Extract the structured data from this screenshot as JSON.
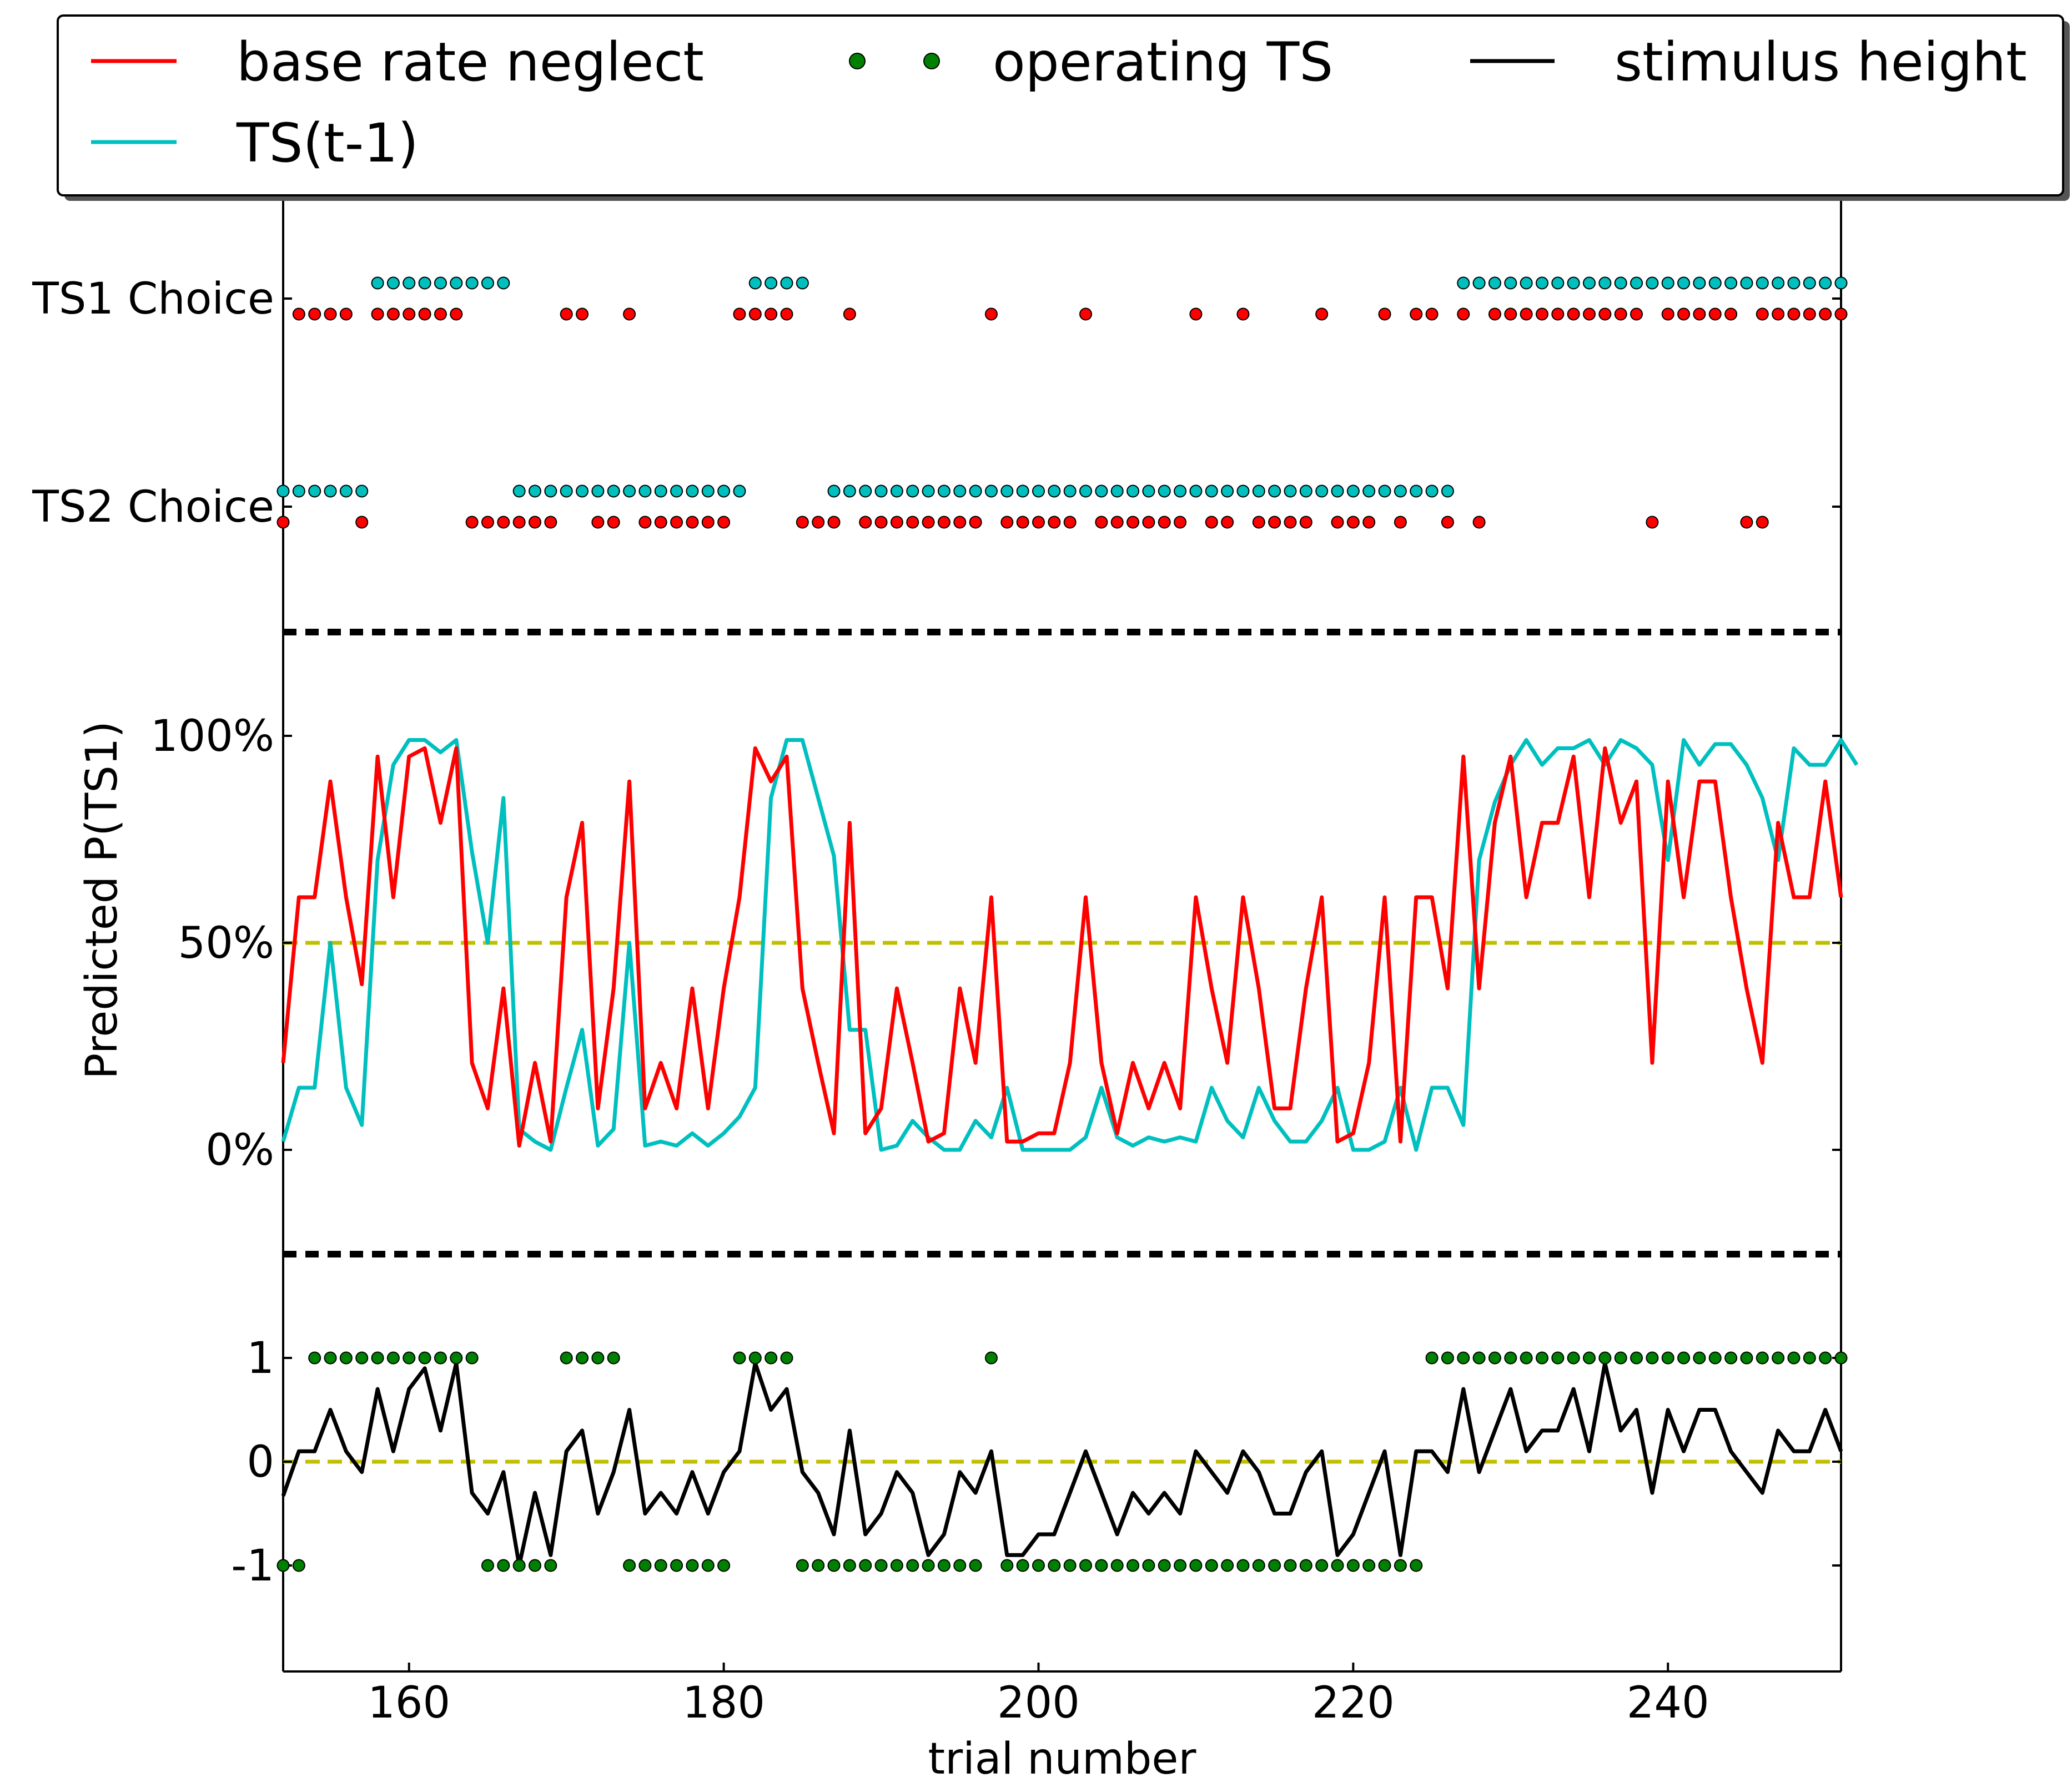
{
  "chart_data": {
    "type": "line",
    "xlabel": "trial number",
    "ylabel": "Predicted P(TS1)",
    "xlim": [
      152,
      251
    ],
    "x_ticks": [
      160,
      180,
      200,
      220,
      240
    ],
    "choice_panel": {
      "tick_labels": [
        "TS1 Choice",
        "TS2 Choice"
      ]
    },
    "prediction_panel": {
      "ylim": [
        0,
        1
      ],
      "ticks": [
        0,
        0.5,
        1
      ],
      "tick_labels": [
        "0%",
        "50%",
        "100%"
      ],
      "reference_line": 0.5
    },
    "stimulus_panel": {
      "ticks": [
        1,
        0,
        -1
      ],
      "tick_labels": [
        "1",
        "0",
        "-1"
      ],
      "reference_line": 0
    },
    "legend": {
      "placement": "top",
      "entries": [
        {
          "label": "base rate neglect",
          "color": "#ff0000",
          "marker": "line"
        },
        {
          "label": "operating TS",
          "color": "#008000",
          "marker": "dot"
        },
        {
          "label": "stimulus height",
          "color": "#000000",
          "marker": "line"
        },
        {
          "label": "TS(t-1)",
          "color": "#00bfbf",
          "marker": "line"
        }
      ]
    },
    "colors": {
      "base_rate_neglect": "#ff0000",
      "ts_prev": "#00bfbf",
      "operating_ts": "#008000",
      "stimulus_height": "#000000",
      "reference": "#bfbf00"
    },
    "x_start": 152,
    "series": [
      {
        "name": "base rate neglect",
        "values": [
          0.21,
          0.61,
          0.61,
          0.89,
          0.61,
          0.4,
          0.95,
          0.61,
          0.95,
          0.97,
          0.79,
          0.97,
          0.21,
          0.1,
          0.39,
          0.01,
          0.21,
          0.02,
          0.61,
          0.79,
          0.1,
          0.39,
          0.89,
          0.1,
          0.21,
          0.1,
          0.39,
          0.1,
          0.39,
          0.61,
          0.97,
          0.89,
          0.95,
          0.39,
          0.21,
          0.04,
          0.79,
          0.04,
          0.1,
          0.39,
          0.21,
          0.02,
          0.04,
          0.39,
          0.21,
          0.61,
          0.02,
          0.02,
          0.04,
          0.04,
          0.21,
          0.61,
          0.21,
          0.04,
          0.21,
          0.1,
          0.21,
          0.1,
          0.61,
          0.39,
          0.21,
          0.61,
          0.39,
          0.1,
          0.1,
          0.39,
          0.61,
          0.02,
          0.04,
          0.21,
          0.61,
          0.02,
          0.61,
          0.61,
          0.39,
          0.95,
          0.39,
          0.79,
          0.95,
          0.61,
          0.79,
          0.79,
          0.95,
          0.61,
          0.97,
          0.79,
          0.89,
          0.21,
          0.89,
          0.61,
          0.89,
          0.89,
          0.61,
          0.39,
          0.21,
          0.79,
          0.61,
          0.61,
          0.89,
          0.61
        ]
      },
      {
        "name": "TS(t-1)",
        "values": [
          0.02,
          0.15,
          0.15,
          0.5,
          0.15,
          0.06,
          0.7,
          0.93,
          0.99,
          0.99,
          0.96,
          0.99,
          0.72,
          0.5,
          0.85,
          0.05,
          0.02,
          0.0,
          0.15,
          0.29,
          0.01,
          0.05,
          0.5,
          0.01,
          0.02,
          0.01,
          0.04,
          0.01,
          0.04,
          0.08,
          0.15,
          0.85,
          0.99,
          0.99,
          0.85,
          0.71,
          0.29,
          0.29,
          0.0,
          0.01,
          0.07,
          0.03,
          0.0,
          0.0,
          0.07,
          0.03,
          0.15,
          0.0,
          0.0,
          0.0,
          0.0,
          0.03,
          0.15,
          0.03,
          0.01,
          0.03,
          0.02,
          0.03,
          0.02,
          0.15,
          0.07,
          0.03,
          0.15,
          0.07,
          0.02,
          0.02,
          0.07,
          0.15,
          0.0,
          0.0,
          0.02,
          0.15,
          0.0,
          0.15,
          0.15,
          0.06,
          0.7,
          0.84,
          0.93,
          0.99,
          0.93,
          0.97,
          0.97,
          0.99,
          0.93,
          0.99,
          0.97,
          0.93,
          0.7,
          0.99,
          0.93,
          0.98,
          0.98,
          0.93,
          0.85,
          0.7,
          0.97,
          0.93,
          0.93,
          0.99,
          0.93
        ]
      },
      {
        "name": "stimulus height",
        "values": [
          -0.33,
          0.1,
          0.1,
          0.5,
          0.1,
          -0.1,
          0.7,
          0.1,
          0.7,
          0.9,
          0.3,
          0.95,
          -0.3,
          -0.5,
          -0.1,
          -1.0,
          -0.3,
          -0.9,
          0.1,
          0.3,
          -0.5,
          -0.1,
          0.5,
          -0.5,
          -0.3,
          -0.5,
          -0.1,
          -0.5,
          -0.1,
          0.1,
          0.95,
          0.5,
          0.7,
          -0.1,
          -0.3,
          -0.7,
          0.3,
          -0.7,
          -0.5,
          -0.1,
          -0.3,
          -0.9,
          -0.7,
          -0.1,
          -0.3,
          0.1,
          -0.9,
          -0.9,
          -0.7,
          -0.7,
          -0.3,
          0.1,
          -0.3,
          -0.7,
          -0.3,
          -0.5,
          -0.3,
          -0.5,
          0.1,
          -0.1,
          -0.3,
          0.1,
          -0.1,
          -0.5,
          -0.5,
          -0.1,
          0.1,
          -0.9,
          -0.7,
          -0.3,
          0.1,
          -0.9,
          0.1,
          0.1,
          -0.1,
          0.7,
          -0.1,
          0.3,
          0.7,
          0.1,
          0.3,
          0.3,
          0.7,
          0.1,
          0.95,
          0.3,
          0.5,
          -0.3,
          0.5,
          0.1,
          0.5,
          0.5,
          0.1,
          -0.1,
          -0.3,
          0.3,
          0.1,
          0.1,
          0.5,
          0.1
        ]
      }
    ],
    "scatter_series": [
      {
        "name": "TS(t-1) choice",
        "color": "#00bfbf",
        "ts1_trials": [
          158,
          159,
          160,
          161,
          162,
          163,
          164,
          165,
          166,
          182,
          183,
          184,
          185,
          227,
          228,
          229,
          230,
          231,
          232,
          233,
          234,
          235,
          236,
          237,
          238,
          239,
          240,
          241,
          242,
          243,
          244,
          245,
          246,
          247,
          248,
          249,
          250,
          251
        ],
        "ts2_trials": [
          152,
          153,
          154,
          155,
          156,
          157,
          167,
          168,
          169,
          170,
          171,
          172,
          173,
          174,
          175,
          176,
          177,
          178,
          179,
          180,
          181,
          187,
          188,
          189,
          190,
          191,
          192,
          193,
          194,
          195,
          196,
          197,
          198,
          199,
          200,
          201,
          202,
          203,
          204,
          205,
          206,
          207,
          208,
          209,
          210,
          211,
          212,
          213,
          214,
          215,
          216,
          217,
          218,
          219,
          220,
          221,
          222,
          223,
          224,
          225,
          226
        ]
      },
      {
        "name": "base rate neglect choice",
        "color": "#ff0000",
        "ts1_trials": [
          153,
          154,
          155,
          156,
          158,
          159,
          160,
          161,
          162,
          163,
          170,
          171,
          174,
          181,
          182,
          183,
          184,
          188,
          197,
          203,
          210,
          213,
          218,
          222,
          224,
          225,
          227,
          229,
          230,
          231,
          232,
          233,
          234,
          235,
          236,
          237,
          238,
          240,
          241,
          242,
          243,
          244,
          246,
          247,
          248,
          249,
          250,
          251
        ],
        "ts2_trials": [
          152,
          157,
          164,
          165,
          166,
          167,
          168,
          169,
          172,
          173,
          175,
          176,
          177,
          178,
          179,
          180,
          185,
          186,
          187,
          189,
          190,
          191,
          192,
          193,
          194,
          195,
          196,
          198,
          199,
          200,
          201,
          202,
          204,
          205,
          206,
          207,
          208,
          209,
          211,
          212,
          214,
          215,
          216,
          217,
          219,
          220,
          221,
          223,
          226,
          228,
          239,
          245,
          246
        ]
      },
      {
        "name": "operating TS",
        "color": "#008000",
        "plus_one_trials": [
          154,
          155,
          156,
          157,
          158,
          159,
          160,
          161,
          162,
          163,
          164,
          170,
          171,
          172,
          173,
          181,
          182,
          183,
          184,
          197,
          225,
          226,
          227,
          228,
          229,
          230,
          231,
          232,
          233,
          234,
          235,
          236,
          237,
          238,
          239,
          240,
          241,
          242,
          243,
          244,
          245,
          246,
          247,
          248,
          249,
          250,
          251
        ],
        "minus_one_trials": [
          152,
          153,
          165,
          166,
          167,
          168,
          169,
          174,
          175,
          176,
          177,
          178,
          179,
          180,
          185,
          186,
          187,
          188,
          189,
          190,
          191,
          192,
          193,
          194,
          195,
          196,
          198,
          199,
          200,
          201,
          202,
          203,
          204,
          205,
          206,
          207,
          208,
          209,
          210,
          211,
          212,
          213,
          214,
          215,
          216,
          217,
          218,
          219,
          220,
          221,
          222,
          223,
          224
        ]
      }
    ]
  }
}
